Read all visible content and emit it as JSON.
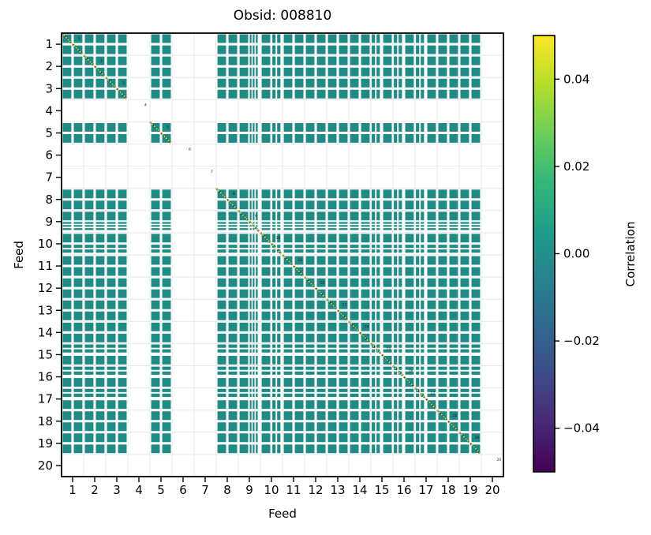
{
  "chart_data": {
    "type": "heatmap",
    "title": "Obsid: 008810",
    "xlabel": "Feed",
    "ylabel": "Feed",
    "x_ticks": [
      "1",
      "2",
      "3",
      "4",
      "5",
      "6",
      "7",
      "8",
      "9",
      "10",
      "11",
      "12",
      "13",
      "14",
      "15",
      "16",
      "17",
      "18",
      "19",
      "20"
    ],
    "y_ticks": [
      "1",
      "2",
      "3",
      "4",
      "5",
      "6",
      "7",
      "8",
      "9",
      "10",
      "11",
      "12",
      "13",
      "14",
      "15",
      "16",
      "17",
      "18",
      "19",
      "20"
    ],
    "feeds": 20,
    "bands_per_feed": 2,
    "missing_feeds": [
      4,
      6,
      7,
      20
    ],
    "split_bands": {
      "18": "thin3",
      "20": "dual",
      "29": "dual",
      "31": "dual",
      "33": "dual"
    },
    "diagonal_feed_labels": [
      "1",
      "2",
      "3",
      "4",
      "5",
      "6",
      "7",
      "8",
      "9",
      "10",
      "11",
      "12",
      "13",
      "14",
      "15",
      "16",
      "17",
      "18",
      "19",
      "20"
    ],
    "values_note": "off-diagonal correlations ~0.00 (teal), diagonal = max (yellow)",
    "colors": {
      "cell": "#1f8b84",
      "diagonal": "#fde725",
      "diagonal_shadow": "#1d3b53",
      "grid": "#e9e9e9",
      "axis": "#000000",
      "feed_label": "#15151f",
      "background": "#ffffff"
    },
    "colorbar": {
      "label": "Correlation",
      "vmin": -0.05,
      "vmax": 0.05,
      "tick_values": [
        0.04,
        0.02,
        0.0,
        -0.02,
        -0.04
      ],
      "tick_labels": [
        "0.04",
        "0.02",
        "0.00",
        "−0.02",
        "−0.04"
      ],
      "gradient_stops": [
        "#440154",
        "#482878",
        "#3e4a89",
        "#31688e",
        "#26828e",
        "#1f9e89",
        "#35b779",
        "#6ece58",
        "#b5de2b",
        "#fde725"
      ]
    }
  }
}
